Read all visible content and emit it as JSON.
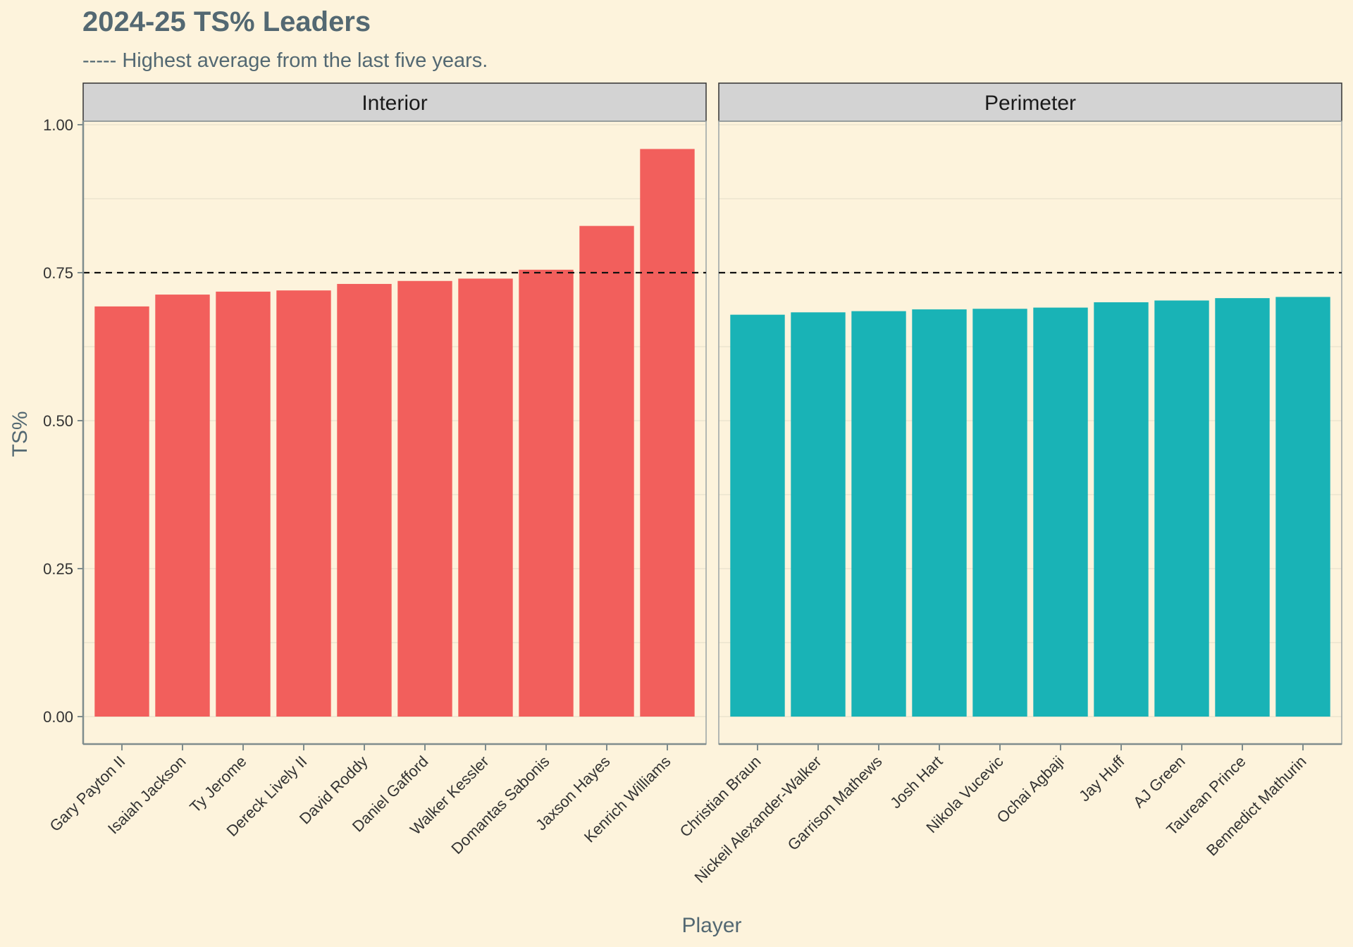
{
  "chart_data": {
    "type": "bar",
    "title": "2024-25 TS% Leaders",
    "subtitle": "----- Highest average from the last five years.",
    "xlabel": "Player",
    "ylabel": "TS%",
    "ylim": [
      0,
      1.0
    ],
    "y_ticks": [
      "0.00",
      "0.25",
      "0.50",
      "0.75",
      "1.00"
    ],
    "y_tick_values": [
      0,
      0.25,
      0.5,
      0.75,
      1.0
    ],
    "reference_line": 0.75,
    "grid": true,
    "legend": "none",
    "panels": [
      {
        "name": "Interior",
        "color": "#f25f5c",
        "categories": [
          "Gary Payton II",
          "Isaiah Jackson",
          "Ty Jerome",
          "Dereck Lively II",
          "David Roddy",
          "Daniel Gafford",
          "Walker Kessler",
          "Domantas Sabonis",
          "Jaxson Hayes",
          "Kenrich Williams"
        ],
        "values": [
          0.693,
          0.713,
          0.718,
          0.72,
          0.731,
          0.736,
          0.74,
          0.755,
          0.829,
          0.959
        ]
      },
      {
        "name": "Perimeter",
        "color": "#19b3b6",
        "categories": [
          "Christian Braun",
          "Nickeil Alexander-Walker",
          "Garrison Mathews",
          "Josh Hart",
          "Nikola Vucevic",
          "Ochai Agbaji",
          "Jay Huff",
          "AJ Green",
          "Taurean Prince",
          "Bennedict Mathurin"
        ],
        "values": [
          0.679,
          0.683,
          0.685,
          0.688,
          0.689,
          0.691,
          0.7,
          0.703,
          0.707,
          0.709
        ]
      }
    ]
  },
  "colors": {
    "background": "#fdf3dc",
    "text": "#536872",
    "axis": "#7f8c8d",
    "strip": "#d3d3d3"
  }
}
